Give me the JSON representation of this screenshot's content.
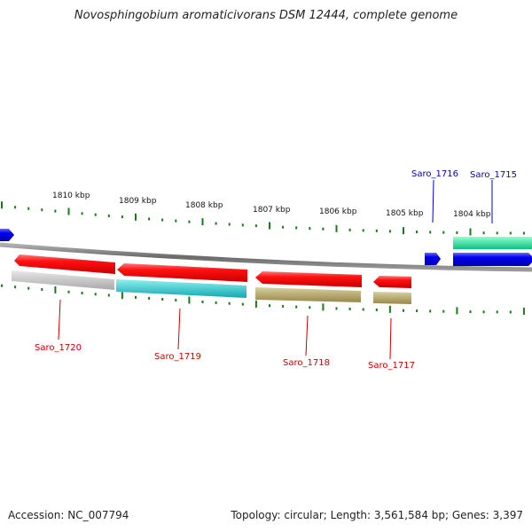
{
  "title": "Novosphingobium aromaticivorans DSM 12444, complete genome",
  "footer": {
    "accession": "Accession: NC_007794",
    "summary": "Topology: circular; Length: 3,561,584 bp; Genes: 3,397"
  },
  "colors": {
    "forward_gene": "#0000ee",
    "reverse_gene": "#ee0000",
    "ruler_tick": "#1a7a1a",
    "backbone": "#7a7a7a",
    "forward_label": "#0000cc",
    "reverse_label": "#cc0000"
  },
  "ruler_labels": [
    "1810 kbp",
    "1809 kbp",
    "1808 kbp",
    "1807 kbp",
    "1806 kbp",
    "1805 kbp",
    "1804 kbp"
  ],
  "genes": [
    {
      "name": "Saro_1720",
      "strand": "reverse",
      "feature_color": "#c8c8c8"
    },
    {
      "name": "Saro_1719",
      "strand": "reverse",
      "feature_color": "#20c8c8"
    },
    {
      "name": "Saro_1718",
      "strand": "reverse",
      "feature_color": "#b0a868"
    },
    {
      "name": "Saro_1717",
      "strand": "reverse",
      "feature_color": "#b0a868"
    },
    {
      "name": "Saro_1716",
      "strand": "forward",
      "feature_color": null
    },
    {
      "name": "Saro_1715",
      "strand": "forward",
      "feature_color": "#20e8a0"
    }
  ]
}
